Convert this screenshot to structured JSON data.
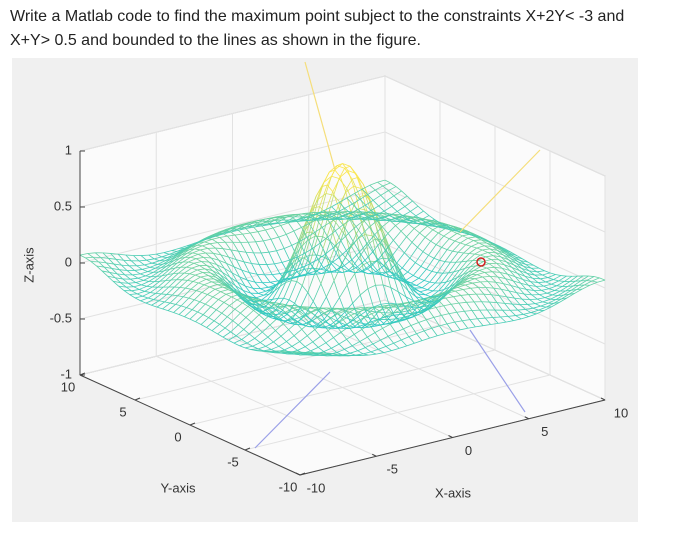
{
  "question": {
    "lines": [
      "Write a Matlab code to find the maximum point subject to the constraints X+2Y< -3 and",
      "X+Y> 0.5 and bounded to the lines as shown in the figure."
    ]
  },
  "figure": {
    "z_label": "Z-axis",
    "y_label": "Y-axis",
    "x_label": "X-axis",
    "z_ticks": [
      -1,
      -0.5,
      0,
      0.5,
      1
    ],
    "y_ticks": [
      -10,
      -5,
      0,
      5,
      10
    ],
    "x_ticks": [
      -10,
      -5,
      0,
      5,
      10
    ]
  }
}
